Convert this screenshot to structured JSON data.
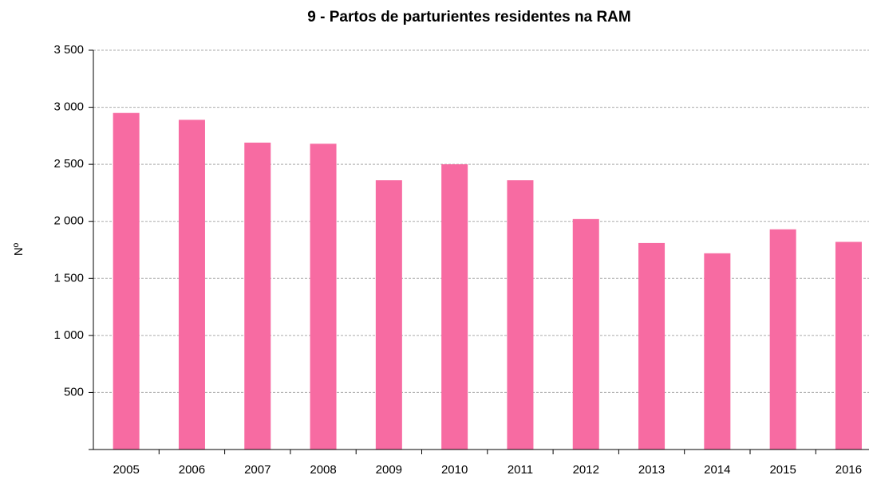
{
  "chart_data": {
    "type": "bar",
    "title": "9 - Partos de parturientes residentes na RAM",
    "y_label": "Nº",
    "categories": [
      "2005",
      "2006",
      "2007",
      "2008",
      "2009",
      "2010",
      "2011",
      "2012",
      "2013",
      "2014",
      "2015",
      "2016"
    ],
    "values": [
      2950,
      2890,
      2690,
      2680,
      2360,
      2500,
      2360,
      2020,
      1810,
      1720,
      1930,
      1820
    ],
    "color": "#f76ba2",
    "ylim": [
      0,
      3500
    ],
    "yticks": [
      500,
      {
        "value": 1000,
        "label": "1 000"
      },
      {
        "value": 1500,
        "label": "1 500"
      },
      {
        "value": 2000,
        "label": "2 000"
      },
      {
        "value": 2500,
        "label": "2 500"
      },
      {
        "value": 3000,
        "label": "3 000"
      },
      {
        "value": 3500,
        "label": "3 500"
      }
    ],
    "grid": true
  }
}
